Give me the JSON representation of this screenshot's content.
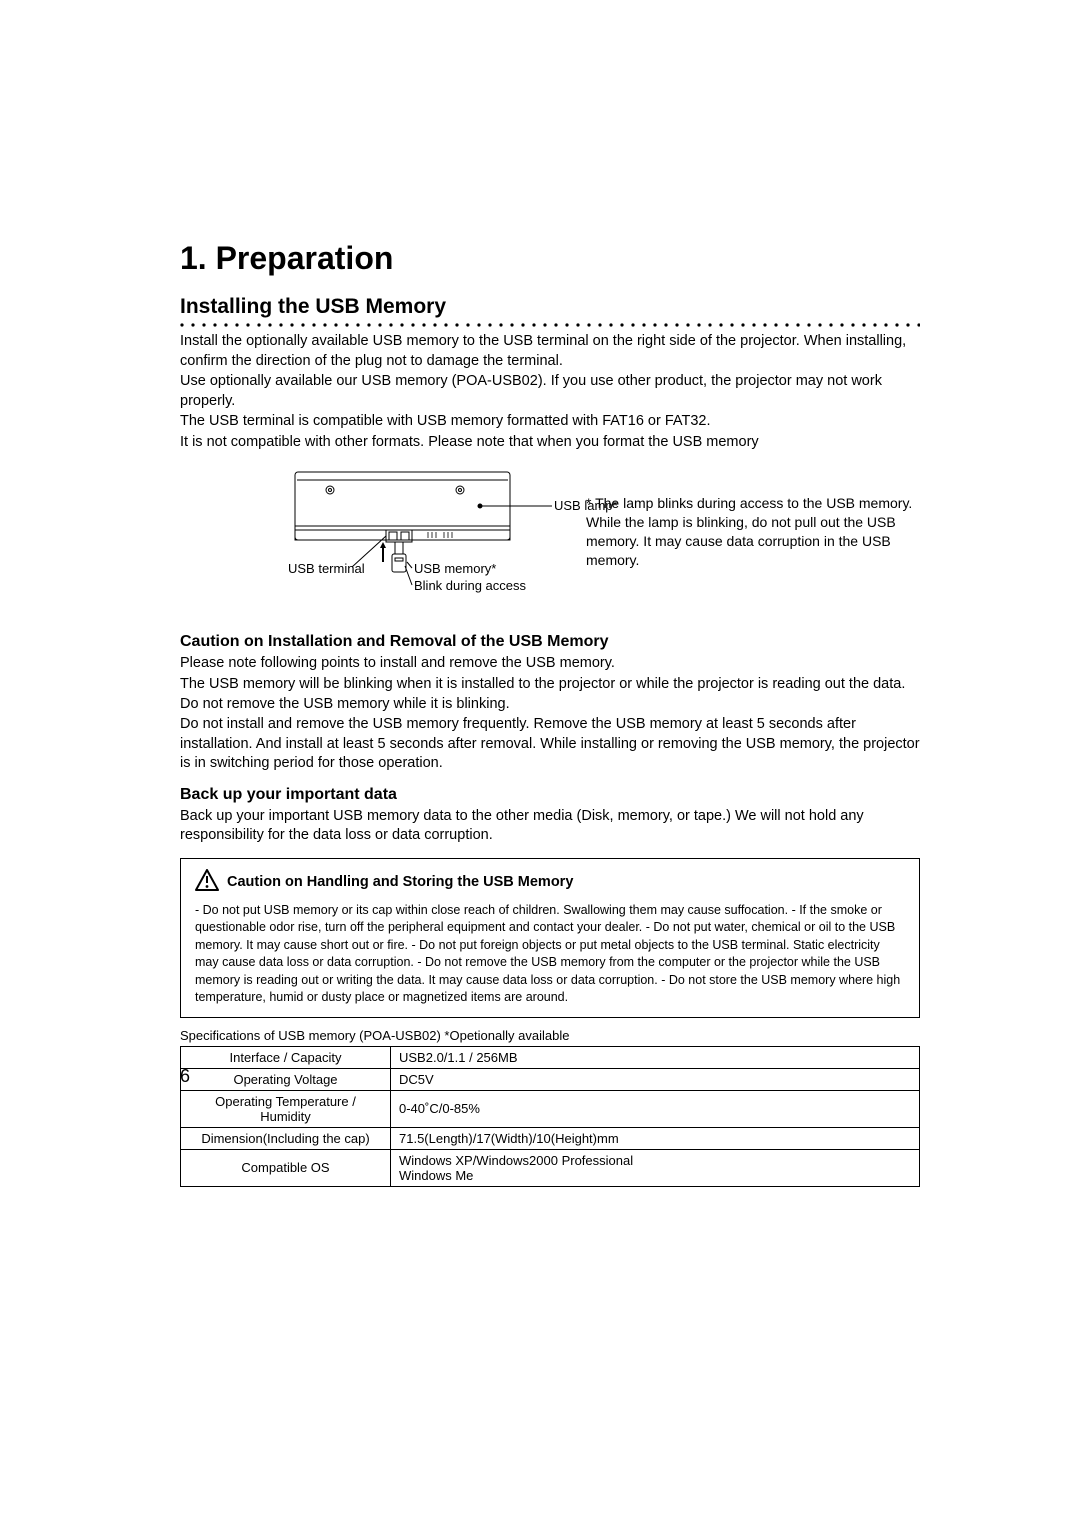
{
  "page_number": "6",
  "chapter_title": "1. Preparation",
  "section_title": "Installing the USB Memory",
  "intro_paragraphs": [
    "Install the optionally available USB memory to the USB terminal on the right side of the projector.  When installing, confirm the direction of the plug not to damage the terminal.",
    "Use optionally available our USB memory (POA-USB02).  If you use other product, the projector may not work properly.",
    "The USB terminal is compatible with USB memory formatted with FAT16 or FAT32.",
    "It is not compatible with other formats.  Please note that when you format the USB memory"
  ],
  "diagram": {
    "labels": {
      "usb_terminal": "USB terminal",
      "usb_memory": "USB memory*",
      "blink": "Blink during access",
      "usb_lamp": "USB lamp*"
    },
    "note_prefix": "* ",
    "note": "The lamp blinks during access to the USB memory.  While the lamp is blinking, do not pull out the USB memory. It may cause data corruption in the USB memory."
  },
  "caution_install": {
    "heading": "Caution on Installation and Removal of the USB Memory",
    "paragraphs": [
      "Please note following points to install and remove the USB memory.",
      "The USB memory will be blinking when it is installed to the projector or while the projector is reading out the data.  Do not remove the USB memory while it is blinking.",
      "Do not install and remove the USB memory frequently.  Remove the USB memory at least 5 seconds after installation.  And install at least 5 seconds after removal.  While installing or removing the USB memory, the projector is in switching period for those operation."
    ]
  },
  "backup": {
    "heading": "Back up your important data",
    "paragraph": "Back up your important USB memory data to the other media (Disk, memory, or tape.)  We will not hold any responsibility for the data loss or data corruption."
  },
  "handling_box": {
    "title": "Caution on Handling and Storing the USB Memory",
    "body": "- Do not put USB memory or its cap within close reach of children.  Swallowing them may cause suffocation.  - If the smoke or questionable odor rise, turn off the peripheral equipment and contact your dealer.  - Do not put water, chemical or oil to the USB memory.  It may cause short out or fire.  - Do not put foreign objects or put metal objects to the USB terminal.  Static electricity may cause data loss or data corruption.  - Do not remove the USB memory from the computer or the projector while the USB memory is reading out or writing the data.  It may cause data loss or data corruption.  - Do not store the USB memory where high temperature, humid or dusty place or magnetized items are around."
  },
  "spec": {
    "caption": "Specifications of USB memory (POA-USB02)   *Opetionally available",
    "rows": [
      {
        "label": "Interface / Capacity",
        "value": "USB2.0/1.1 / 256MB"
      },
      {
        "label": "Operating Voltage",
        "value": "DC5V"
      },
      {
        "label": "Operating Temperature / Humidity",
        "value": "0-40˚C/0-85%"
      },
      {
        "label": "Dimension(Including the cap)",
        "value": "71.5(Length)/17(Width)/10(Height)mm"
      },
      {
        "label": "Compatible OS",
        "value": "Windows XP/Windows2000 Professional\nWindows Me"
      }
    ]
  },
  "colors": {
    "text": "#000000",
    "background": "#ffffff",
    "border": "#000000",
    "dot": "#000000"
  }
}
